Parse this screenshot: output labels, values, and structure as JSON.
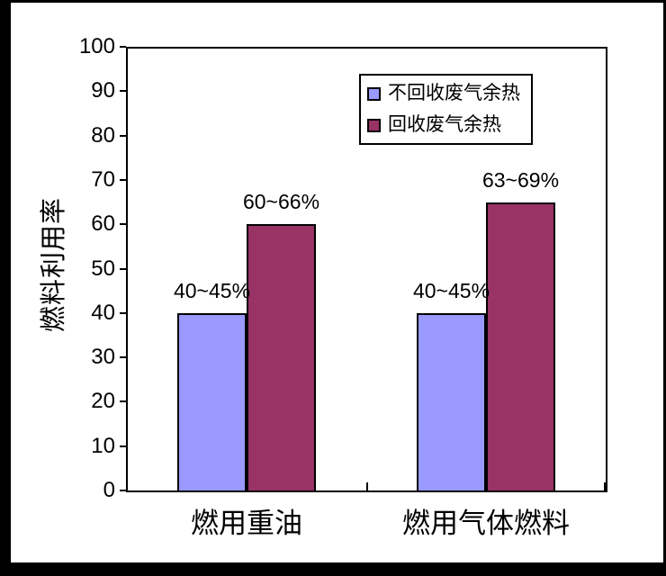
{
  "figure": {
    "border_color": "#000000",
    "background_color": "#ffffff"
  },
  "chart_data": {
    "type": "bar",
    "title": "",
    "xlabel": "",
    "ylabel": "燃料利用率",
    "categories": [
      "燃用重油",
      "燃用气体燃料"
    ],
    "series": [
      {
        "name": "不回收废气余热",
        "color": "#9999ff",
        "values": [
          40,
          40
        ],
        "data_labels": [
          "40~45%",
          "40~45%"
        ]
      },
      {
        "name": "回收废气余热",
        "color": "#993366",
        "values": [
          60,
          65
        ],
        "data_labels": [
          "60~66%",
          "63~69%"
        ]
      }
    ],
    "ylim": [
      0,
      100
    ],
    "yticks": [
      0,
      10,
      20,
      30,
      40,
      50,
      60,
      70,
      80,
      90,
      100
    ],
    "grid": false,
    "legend_position": "inside-top-right",
    "bar_outline_color": "#000000"
  }
}
